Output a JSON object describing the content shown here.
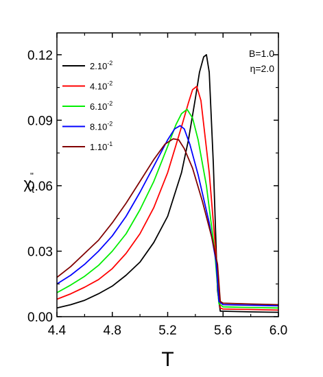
{
  "chart_data": {
    "type": "line",
    "xlabel": "T",
    "ylabel": {
      "main": "χ",
      "sub": "t",
      "sup": "''"
    },
    "xlim": [
      4.4,
      6.0
    ],
    "ylim": [
      0.0,
      0.13
    ],
    "x_ticks": [
      "4.4",
      "4.8",
      "5.2",
      "5.6",
      "6.0"
    ],
    "y_ticks": [
      "0.00",
      "0.03",
      "0.06",
      "0.09",
      "0.12"
    ],
    "x_tick_values": [
      4.4,
      4.8,
      5.2,
      5.6,
      6.0
    ],
    "y_tick_values": [
      0.0,
      0.03,
      0.06,
      0.09,
      0.12
    ],
    "grid": false,
    "legend_position": "top-left",
    "annotations": [
      "B=1.0",
      "η=2.0"
    ],
    "series": [
      {
        "name": "2.10-2",
        "base": "2.10",
        "exp": "-2",
        "color": "#000000",
        "x": [
          4.4,
          4.5,
          4.6,
          4.7,
          4.8,
          4.9,
          5.0,
          5.1,
          5.2,
          5.3,
          5.35,
          5.4,
          5.43,
          5.46,
          5.48,
          5.5,
          5.53,
          5.56,
          5.58,
          5.6,
          5.8,
          6.0
        ],
        "y": [
          0.004,
          0.0055,
          0.0075,
          0.0105,
          0.014,
          0.019,
          0.025,
          0.034,
          0.046,
          0.066,
          0.081,
          0.1,
          0.112,
          0.119,
          0.12,
          0.112,
          0.07,
          0.012,
          0.0025,
          0.0025,
          0.0022,
          0.002
        ]
      },
      {
        "name": "4.10-2",
        "base": "4.10",
        "exp": "-2",
        "color": "#ff0000",
        "x": [
          4.4,
          4.5,
          4.6,
          4.7,
          4.8,
          4.9,
          5.0,
          5.1,
          5.2,
          5.3,
          5.35,
          5.38,
          5.41,
          5.44,
          5.5,
          5.56,
          5.58,
          5.6,
          5.8,
          6.0
        ],
        "y": [
          0.008,
          0.0105,
          0.0135,
          0.017,
          0.022,
          0.029,
          0.038,
          0.05,
          0.066,
          0.087,
          0.098,
          0.104,
          0.1055,
          0.099,
          0.066,
          0.02,
          0.004,
          0.0035,
          0.0033,
          0.003
        ]
      },
      {
        "name": "6.10-2",
        "base": "6.10",
        "exp": "-2",
        "color": "#00ee00",
        "x": [
          4.4,
          4.5,
          4.6,
          4.7,
          4.8,
          4.9,
          5.0,
          5.1,
          5.2,
          5.26,
          5.3,
          5.34,
          5.38,
          5.42,
          5.48,
          5.54,
          5.57,
          5.6,
          5.8,
          6.0
        ],
        "y": [
          0.011,
          0.0145,
          0.0185,
          0.0235,
          0.03,
          0.038,
          0.049,
          0.062,
          0.078,
          0.088,
          0.093,
          0.095,
          0.091,
          0.081,
          0.06,
          0.03,
          0.006,
          0.0045,
          0.0042,
          0.004
        ]
      },
      {
        "name": "8.10-2",
        "base": "8.10",
        "exp": "-2",
        "color": "#0000ff",
        "x": [
          4.4,
          4.5,
          4.6,
          4.7,
          4.8,
          4.9,
          5.0,
          5.1,
          5.2,
          5.25,
          5.29,
          5.32,
          5.36,
          5.42,
          5.5,
          5.55,
          5.57,
          5.6,
          5.8,
          6.0
        ],
        "y": [
          0.015,
          0.019,
          0.024,
          0.03,
          0.037,
          0.046,
          0.057,
          0.069,
          0.081,
          0.086,
          0.0875,
          0.086,
          0.079,
          0.065,
          0.043,
          0.025,
          0.007,
          0.0055,
          0.0052,
          0.005
        ]
      },
      {
        "name": "1.10-1",
        "base": "1.10",
        "exp": "-1",
        "color": "#800000",
        "x": [
          4.4,
          4.5,
          4.6,
          4.7,
          4.8,
          4.9,
          5.0,
          5.1,
          5.18,
          5.24,
          5.28,
          5.32,
          5.38,
          5.45,
          5.52,
          5.56,
          5.58,
          5.6,
          5.8,
          6.0
        ],
        "y": [
          0.018,
          0.023,
          0.029,
          0.035,
          0.043,
          0.052,
          0.062,
          0.072,
          0.079,
          0.0815,
          0.081,
          0.077,
          0.068,
          0.053,
          0.036,
          0.024,
          0.007,
          0.0062,
          0.0058,
          0.0055
        ]
      }
    ]
  }
}
